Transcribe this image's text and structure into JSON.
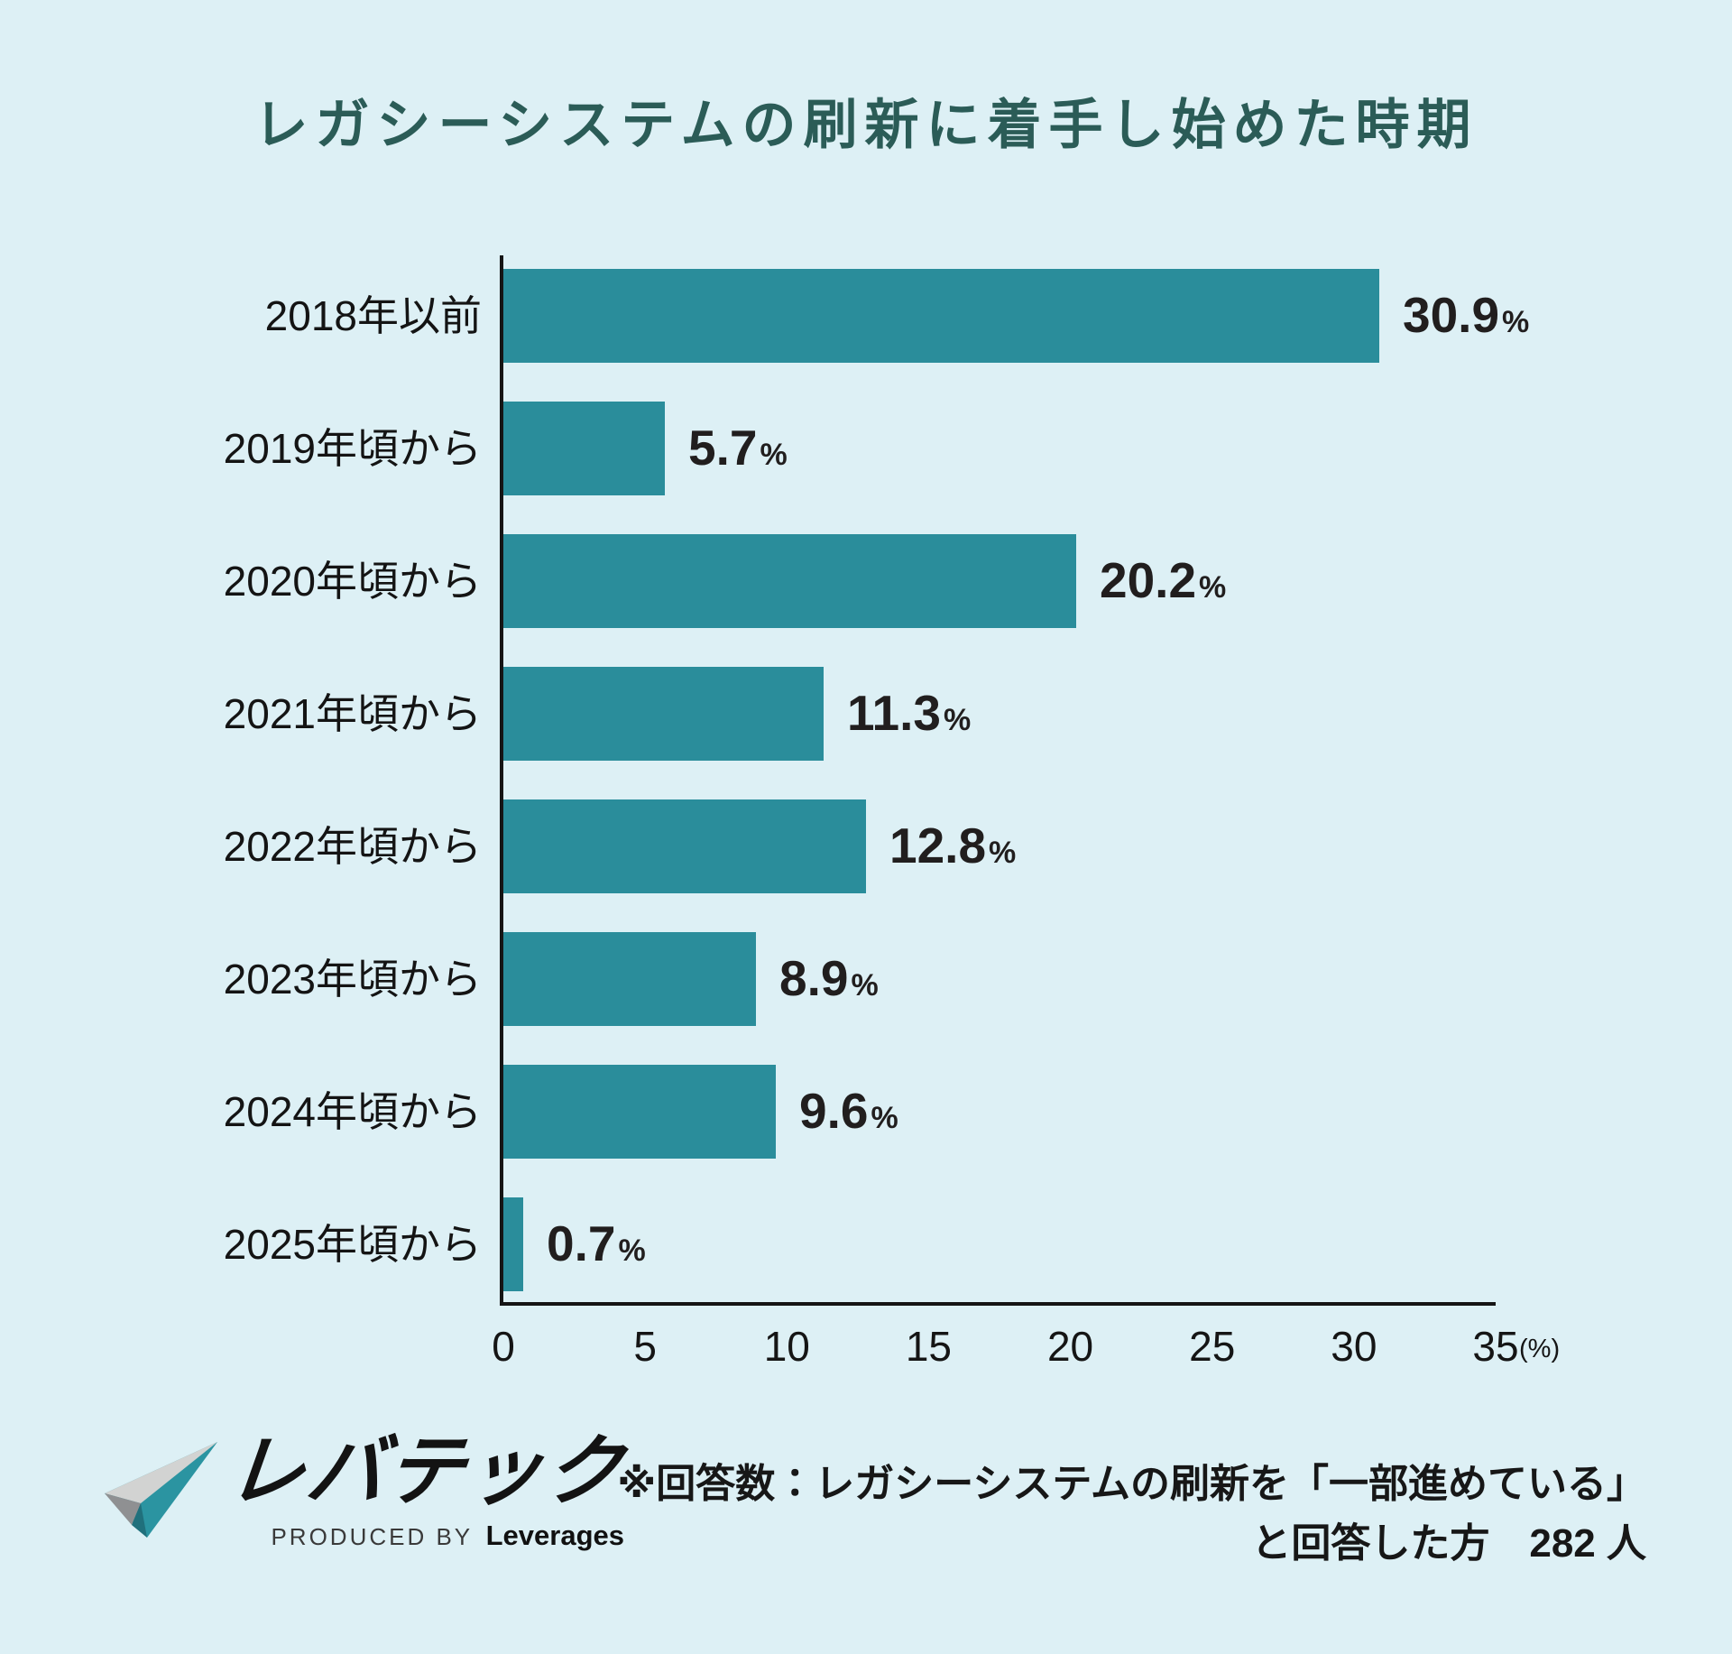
{
  "title": "レガシーシステムの刷新に着手し始めた時期",
  "colors": {
    "background": "#ddf0f5",
    "bar": "#2a8d9b",
    "title_text": "#2b5c57",
    "axis": "#151515",
    "label_text": "#141414",
    "logo_teal": "#2b94a1",
    "logo_gray_dark": "#8f9092",
    "logo_gray_light": "#d2d3d2"
  },
  "chart_data": {
    "type": "bar",
    "orientation": "horizontal",
    "title": "レガシーシステムの刷新に着手し始めた時期",
    "categories": [
      "2018年以前",
      "2019年頃から",
      "2020年頃から",
      "2021年頃から",
      "2022年頃から",
      "2023年頃から",
      "2024年頃から",
      "2025年頃から"
    ],
    "values": [
      30.9,
      5.7,
      20.2,
      11.3,
      12.8,
      8.9,
      9.6,
      0.7
    ],
    "labels": [
      "30.9",
      "5.7",
      "20.2",
      "11.3",
      "12.8",
      "8.9",
      "9.6",
      "0.7"
    ],
    "unit": "%",
    "x_ticks": [
      0,
      5,
      10,
      15,
      20,
      25,
      30,
      35
    ],
    "x_axis_unit_label": "(%)",
    "xlim": [
      0,
      35
    ],
    "xlabel": "",
    "ylabel": "",
    "grid": false,
    "legend": false
  },
  "note": {
    "line1": "※回答数：レガシーシステムの刷新を「一部進めている」",
    "line2": "と回答した方　282 人"
  },
  "logo": {
    "brand": "レバテック",
    "produced_by": "PRODUCED BY",
    "company": "Leverages"
  }
}
